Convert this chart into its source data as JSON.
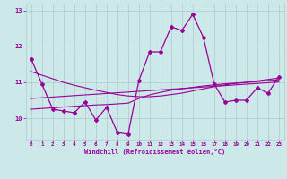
{
  "xlabel": "Windchill (Refroidissement éolien,°C)",
  "x_hours": [
    0,
    1,
    2,
    3,
    4,
    5,
    6,
    7,
    8,
    9,
    10,
    11,
    12,
    13,
    14,
    15,
    16,
    17,
    18,
    19,
    20,
    21,
    22,
    23
  ],
  "main_line": [
    11.65,
    10.95,
    10.25,
    10.2,
    10.15,
    10.45,
    9.95,
    10.3,
    9.6,
    9.55,
    11.05,
    11.85,
    11.85,
    12.55,
    12.45,
    12.9,
    12.25,
    10.95,
    10.45,
    10.5,
    10.5,
    10.85,
    10.7,
    11.15
  ],
  "trend1": [
    10.55,
    10.57,
    10.59,
    10.61,
    10.63,
    10.65,
    10.67,
    10.69,
    10.71,
    10.73,
    10.75,
    10.77,
    10.79,
    10.81,
    10.83,
    10.85,
    10.87,
    10.89,
    10.91,
    10.93,
    10.95,
    10.97,
    10.99,
    11.01
  ],
  "trend2": [
    11.3,
    11.2,
    11.1,
    11.0,
    10.92,
    10.85,
    10.78,
    10.72,
    10.66,
    10.62,
    10.6,
    10.6,
    10.62,
    10.66,
    10.7,
    10.76,
    10.82,
    10.88,
    10.93,
    10.97,
    11.0,
    11.04,
    11.08,
    11.12
  ],
  "trend3": [
    10.25,
    10.27,
    10.29,
    10.31,
    10.33,
    10.35,
    10.37,
    10.38,
    10.4,
    10.42,
    10.55,
    10.65,
    10.72,
    10.78,
    10.82,
    10.86,
    10.9,
    10.93,
    10.96,
    10.98,
    11.0,
    11.02,
    11.05,
    11.07
  ],
  "line_color": "#990099",
  "bg_color": "#cce8e8",
  "grid_color": "#aacccc",
  "axis_color": "#990099",
  "ylim": [
    9.4,
    13.2
  ],
  "yticks": [
    10,
    11,
    12,
    13
  ],
  "xticks": [
    0,
    1,
    2,
    3,
    4,
    5,
    6,
    7,
    8,
    9,
    10,
    11,
    12,
    13,
    14,
    15,
    16,
    17,
    18,
    19,
    20,
    21,
    22,
    23
  ]
}
